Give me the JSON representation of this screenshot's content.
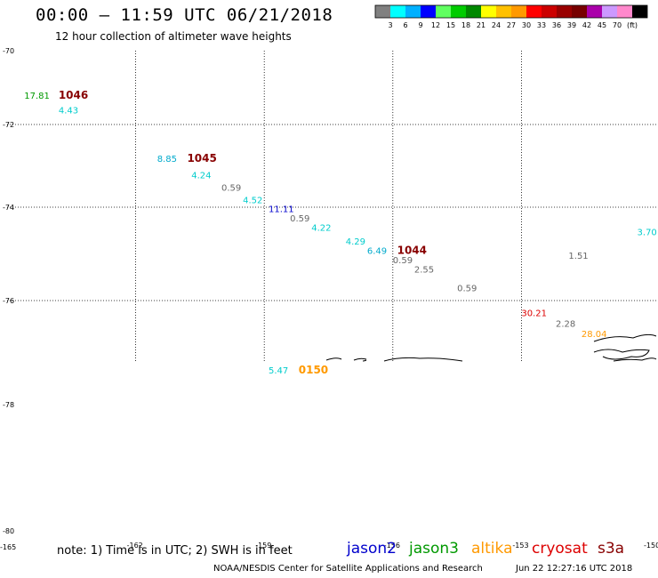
{
  "header": {
    "title": "00:00 — 11:59 UTC 06/21/2018",
    "subtitle": "12 hour collection of altimeter wave heights"
  },
  "colorbar": {
    "colors": [
      "#808080",
      "#00ffff",
      "#00b0ff",
      "#0000ff",
      "#60ff60",
      "#00cc00",
      "#008800",
      "#ffff00",
      "#ffc000",
      "#ff9900",
      "#ff0000",
      "#cc0000",
      "#990000",
      "#770000",
      "#aa00aa",
      "#cc99ff",
      "#ff88cc",
      "#000000"
    ],
    "labels": [
      "3",
      "6",
      "9",
      "12",
      "15",
      "18",
      "21",
      "24",
      "27",
      "30",
      "33",
      "36",
      "39",
      "42",
      "45",
      "70",
      "(ft)"
    ]
  },
  "map": {
    "lat_labels": [
      "-70",
      "-72",
      "-74",
      "-76",
      "-78",
      "-80"
    ],
    "lon_labels": [
      "-165",
      "-162",
      "-159",
      "-156",
      "-153",
      "-150"
    ],
    "observations": [
      {
        "text": "17.81",
        "lat": -71.3,
        "lon": -164.6,
        "color": "#009900"
      },
      {
        "text": "1046",
        "lat": -71.3,
        "lon": -163.8,
        "color": "#880000",
        "kind": "time"
      },
      {
        "text": "4.43",
        "lat": -71.7,
        "lon": -163.8,
        "color": "#00cccc"
      },
      {
        "text": "8.85",
        "lat": -72.9,
        "lon": -161.5,
        "color": "#00aacc"
      },
      {
        "text": "1045",
        "lat": -72.9,
        "lon": -160.8,
        "color": "#880000",
        "kind": "time"
      },
      {
        "text": "4.24",
        "lat": -73.3,
        "lon": -160.7,
        "color": "#00cccc"
      },
      {
        "text": "0.59",
        "lat": -73.6,
        "lon": -160.0,
        "color": "#666666"
      },
      {
        "text": "4.52",
        "lat": -73.9,
        "lon": -159.5,
        "color": "#00cccc"
      },
      {
        "text": "11.11",
        "lat": -74.1,
        "lon": -158.9,
        "color": "#0000cc"
      },
      {
        "text": "0.59",
        "lat": -74.3,
        "lon": -158.4,
        "color": "#666666"
      },
      {
        "text": "4.22",
        "lat": -74.5,
        "lon": -157.9,
        "color": "#00cccc"
      },
      {
        "text": "4.29",
        "lat": -74.8,
        "lon": -157.1,
        "color": "#00cccc"
      },
      {
        "text": "6.49",
        "lat": -75.0,
        "lon": -156.6,
        "color": "#00aacc"
      },
      {
        "text": "1044",
        "lat": -75.0,
        "lon": -155.9,
        "color": "#880000",
        "kind": "time"
      },
      {
        "text": "0.59",
        "lat": -75.2,
        "lon": -156.0,
        "color": "#666666"
      },
      {
        "text": "2.55",
        "lat": -75.4,
        "lon": -155.5,
        "color": "#666666"
      },
      {
        "text": "0.59",
        "lat": -75.8,
        "lon": -154.5,
        "color": "#666666"
      },
      {
        "text": "3.70",
        "lat": -74.6,
        "lon": -150.3,
        "color": "#00cccc"
      },
      {
        "text": "1.51",
        "lat": -75.1,
        "lon": -151.9,
        "color": "#666666"
      },
      {
        "text": "30.21",
        "lat": -76.3,
        "lon": -153.0,
        "color": "#dd0000"
      },
      {
        "text": "2.28",
        "lat": -76.5,
        "lon": -152.2,
        "color": "#666666"
      },
      {
        "text": "28.04",
        "lat": -76.7,
        "lon": -151.6,
        "color": "#ff9900"
      },
      {
        "text": "5.47",
        "lat": -77.4,
        "lon": -158.9,
        "color": "#00cccc"
      },
      {
        "text": "0150",
        "lat": -77.4,
        "lon": -158.2,
        "color": "#ff9900",
        "kind": "time"
      }
    ]
  },
  "footer": {
    "note": "note: 1) Time is in UTC; 2) SWH is in feet",
    "legend": [
      {
        "name": "jason2",
        "color": "#0000cc"
      },
      {
        "name": "jason3",
        "color": "#009900"
      },
      {
        "name": "altika",
        "color": "#ff9900"
      },
      {
        "name": "cryosat",
        "color": "#dd0000"
      },
      {
        "name": "s3a",
        "color": "#880000"
      }
    ],
    "credit": "NOAA/NESDIS Center for Satellite Applications and Research",
    "timestamp": "Jun 22 12:27:16 UTC 2018"
  }
}
